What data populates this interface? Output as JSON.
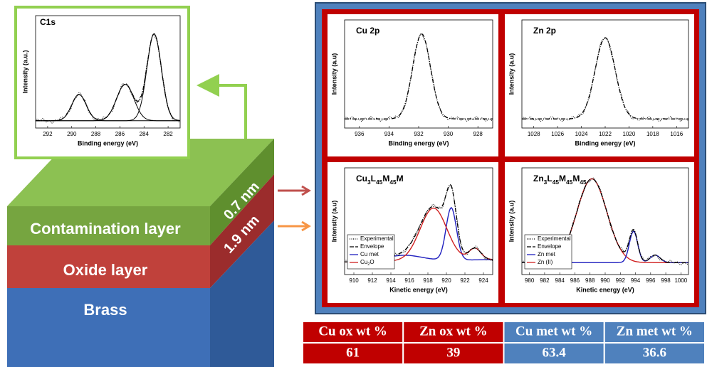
{
  "layers": {
    "contamination": {
      "label": "Contamination layer",
      "thickness": "0.7 nm"
    },
    "oxide": {
      "label": "Oxide layer",
      "thickness": "1.9 nm"
    },
    "brass": {
      "label": "Brass"
    }
  },
  "panels": [
    {
      "title": "C1s",
      "y_label": "Intensity (a.u.)",
      "x_label": "Binding energy (eV)",
      "xticks": [
        "292",
        "290",
        "288",
        "286",
        "284",
        "282"
      ]
    },
    {
      "title": "Cu 2p",
      "y_label": "Intensity (a.u)",
      "x_label": "Binding energy (eV)",
      "xticks": [
        "936",
        "934",
        "932",
        "930",
        "928"
      ]
    },
    {
      "title": "Zn 2p",
      "y_label": "Intensity (a.u)",
      "x_label": "Binding energy (eV)",
      "xticks": [
        "1028",
        "1026",
        "1024",
        "1022",
        "1020",
        "1018",
        "1016"
      ]
    },
    {
      "title": [
        "Cu",
        "3",
        "L",
        "45",
        "M",
        "45",
        "M"
      ],
      "y_label": "Intensity (a.u)",
      "x_label": "Kinetic energy (eV)",
      "xticks": [
        "910",
        "912",
        "914",
        "916",
        "918",
        "920",
        "922",
        "924"
      ],
      "legend": [
        "Experimental",
        "Envelope",
        "Cu met",
        [
          "Cu",
          "2",
          "O"
        ]
      ]
    },
    {
      "title": [
        "Zn",
        "3",
        "L",
        "45",
        "M",
        "45",
        "M",
        "45",
        ""
      ],
      "y_label": "Intensity (a.u)",
      "x_label": "Kinetic energy (eV)",
      "xticks": [
        "980",
        "982",
        "984",
        "986",
        "988",
        "990",
        "992",
        "994",
        "996",
        "998",
        "1000"
      ],
      "legend": [
        "Experimental",
        "Envelope",
        "Zn met",
        "Zn (II)"
      ]
    }
  ],
  "table": {
    "header": [
      "Cu ox wt %",
      "Zn ox wt %",
      "Cu met wt %",
      "Zn met wt %"
    ],
    "row": [
      61,
      39,
      63.4,
      36.6
    ]
  }
}
